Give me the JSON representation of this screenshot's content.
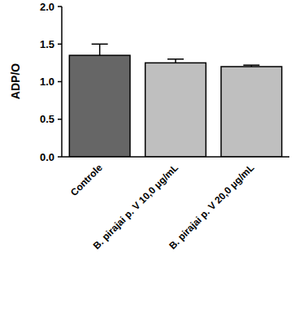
{
  "chart_data": {
    "type": "bar",
    "y_label": "ADP/O",
    "categories": [
      "Controle",
      "B. pirajai p. V 10,0 μg/mL",
      "B. pirajai p. V 20,0 μg/mL"
    ],
    "values": [
      1.35,
      1.25,
      1.2
    ],
    "errors": [
      0.15,
      0.05,
      0.02
    ],
    "colors": [
      "#666666",
      "#bfbfbf",
      "#bfbfbf"
    ],
    "ylim": [
      0,
      2
    ],
    "yticks": [
      {
        "value": 0,
        "label": "0.0"
      },
      {
        "value": 0.5,
        "label": "0.5"
      },
      {
        "value": 1,
        "label": "1.0"
      },
      {
        "value": 1.5,
        "label": "1.5"
      },
      {
        "value": 2,
        "label": "2.0"
      }
    ],
    "grid": false
  }
}
